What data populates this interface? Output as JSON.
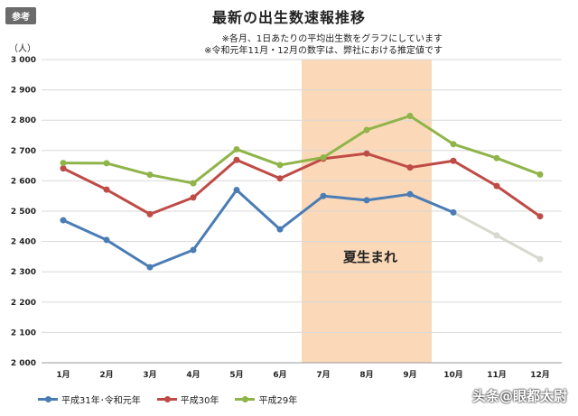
{
  "badge": "参考",
  "notes": [
    "※各月、1日あたりの平均出生数をグラフにしています",
    "※令和元年11月・12月の数字は、弊社における推定値です"
  ],
  "unit": "（人）",
  "summer_label": "夏生まれ",
  "watermark": "头条@眼都太尉",
  "colors": {
    "r1": "#4a7cb5",
    "r1_estimate": "#d8d8cf",
    "h30": "#bf4b46",
    "h29": "#8fb449",
    "summer": "#fbd9b8",
    "grid": "#d8d8d8"
  },
  "chart_data": {
    "type": "line",
    "title": "最新の出生数速報推移",
    "categories": [
      "1月",
      "2月",
      "3月",
      "4月",
      "5月",
      "6月",
      "7月",
      "8月",
      "9月",
      "10月",
      "11月",
      "12月"
    ],
    "ylim": [
      2000,
      3000
    ],
    "yticks": [
      2000,
      2100,
      2200,
      2300,
      2400,
      2500,
      2600,
      2700,
      2800,
      2900,
      3000
    ],
    "ytick_labels": [
      "2 000",
      "2 100",
      "2 200",
      "2 300",
      "2 400",
      "2 500",
      "2 600",
      "2 700",
      "2 800",
      "2 900",
      "3 000"
    ],
    "grid": true,
    "highlight": {
      "from": "7月",
      "to": "9月"
    },
    "series": [
      {
        "name": "平成31年･令和元年",
        "key": "r1",
        "values": [
          2470,
          2405,
          2315,
          2372,
          2570,
          2440,
          2550,
          2536,
          2556,
          2496,
          2420,
          2342
        ],
        "estimate_from": 10
      },
      {
        "name": "平成30年",
        "key": "h30",
        "values": [
          2641,
          2571,
          2490,
          2545,
          2669,
          2608,
          2673,
          2690,
          2644,
          2666,
          2583,
          2483
        ]
      },
      {
        "name": "平成29年",
        "key": "h29",
        "values": [
          2659,
          2658,
          2620,
          2592,
          2704,
          2652,
          2677,
          2768,
          2814,
          2721,
          2675,
          2621
        ]
      }
    ]
  }
}
